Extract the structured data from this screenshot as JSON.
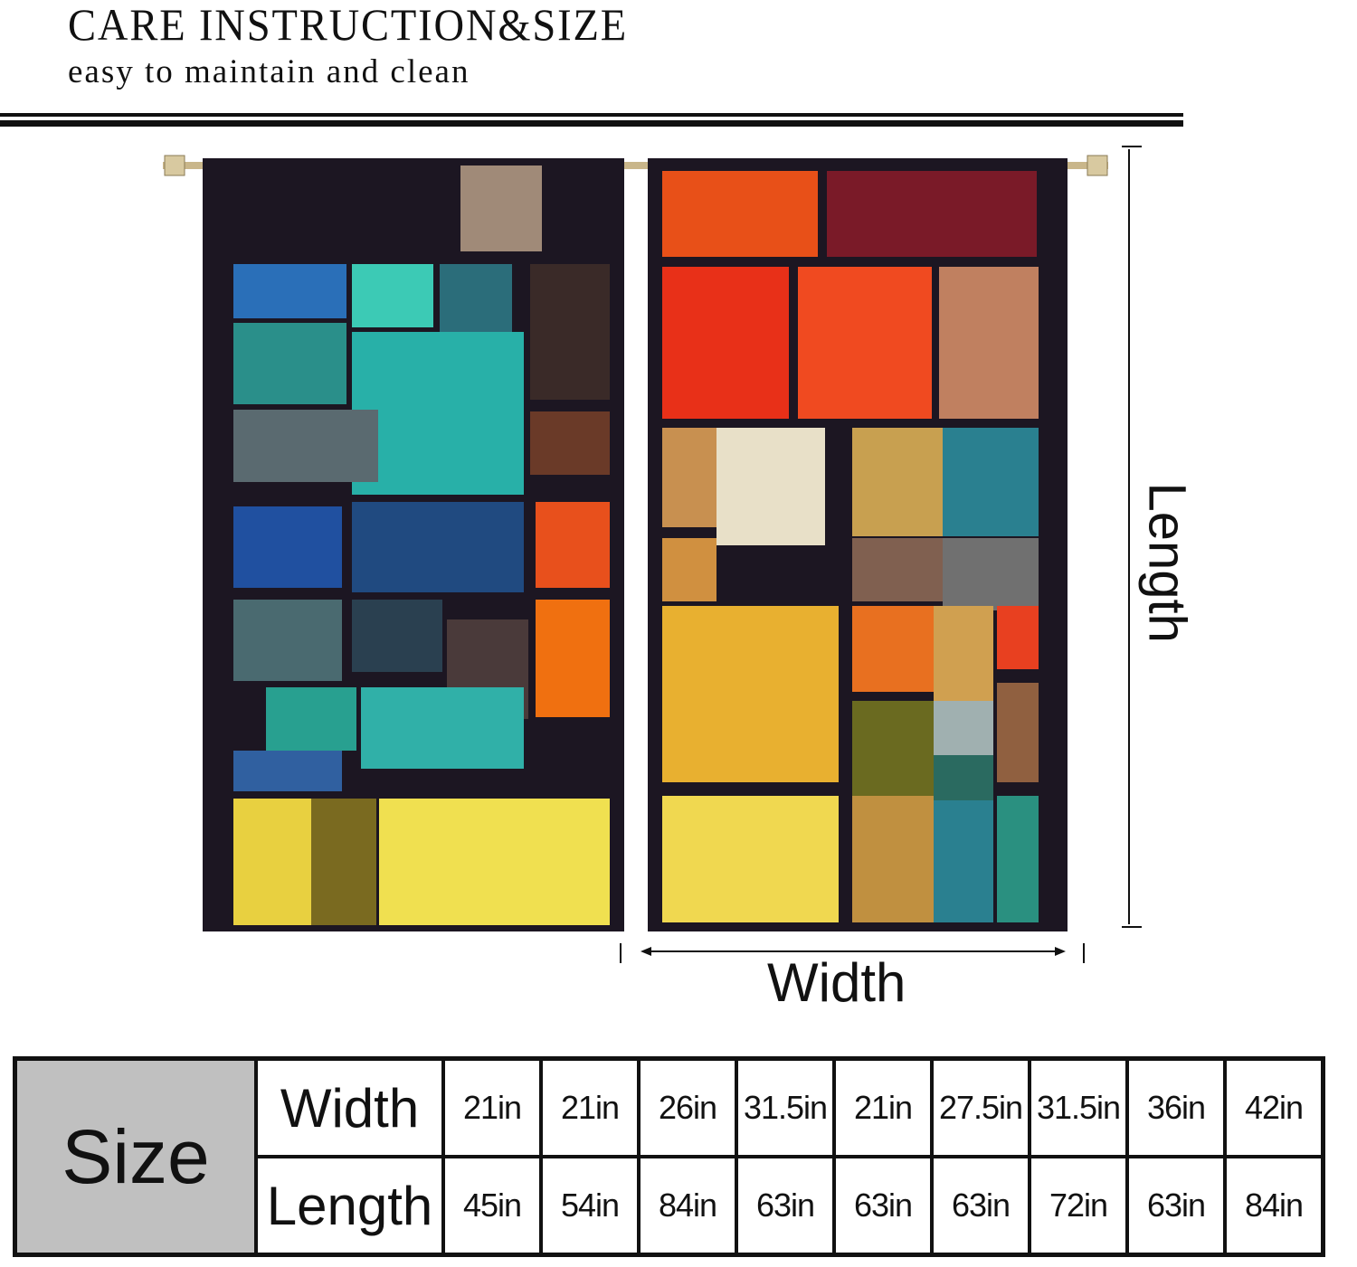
{
  "header": {
    "title": "CARE INSTRUCTION&SIZE",
    "subtitle": "easy to maintain and clean"
  },
  "diagram": {
    "length_label": "Length",
    "width_label": "Width"
  },
  "size_table": {
    "heading": "Size",
    "rows": [
      {
        "label": "Width",
        "values": [
          "21in",
          "21in",
          "26in",
          "31.5in",
          "21in",
          "27.5in",
          "31.5in",
          "36in",
          "42in"
        ]
      },
      {
        "label": "Length",
        "values": [
          "45in",
          "54in",
          "84in",
          "63in",
          "63in",
          "63in",
          "72in",
          "63in",
          "84in"
        ]
      }
    ]
  },
  "colors": {
    "size_cell_bg": "#c0c0c0",
    "border": "#111111",
    "curtain_frame": "#1c1622"
  }
}
